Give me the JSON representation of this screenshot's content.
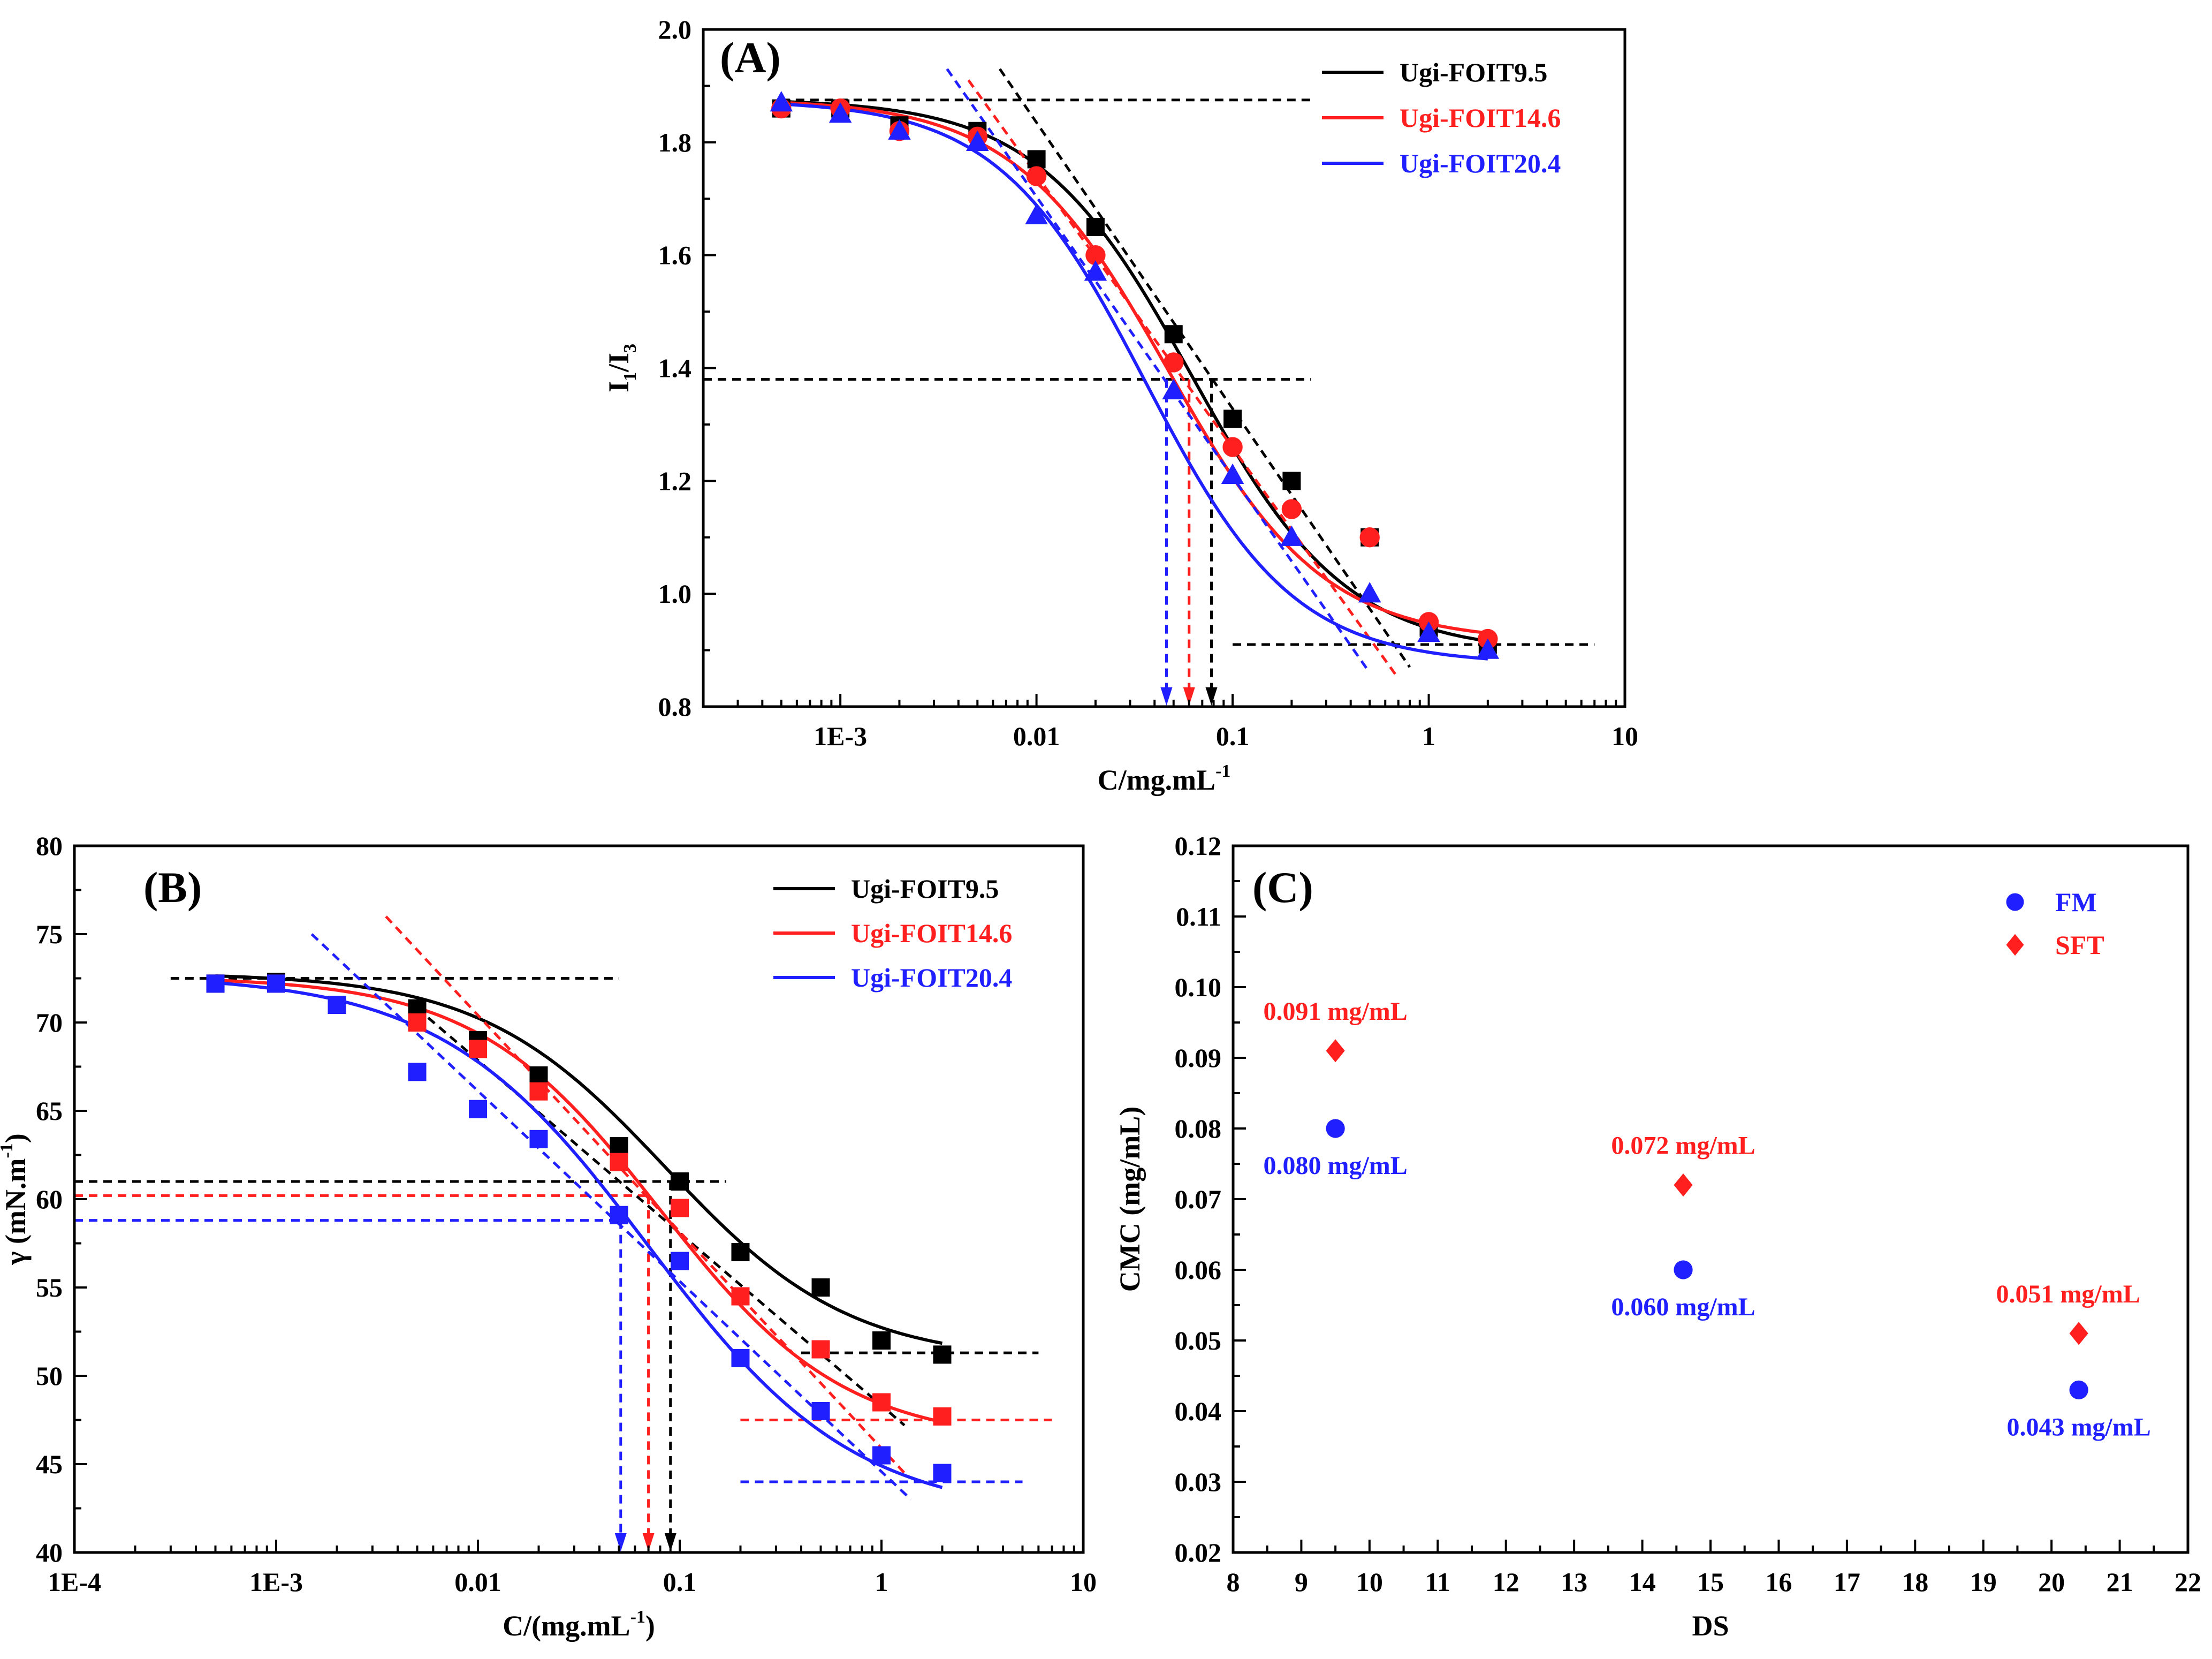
{
  "colors": {
    "black": "#000000",
    "red": "#ff1f1f",
    "blue": "#1f1fff"
  },
  "chart_data": [
    {
      "id": "A",
      "type": "scatter",
      "panel_label": "(A)",
      "xscale": "log",
      "xlim": [
        0.0002,
        10
      ],
      "ylim": [
        0.8,
        2.0
      ],
      "xlabel_main": "C/mg.mL",
      "xlabel_sup": "-1",
      "ylabel_main": "I",
      "ylabel_sub1": "1",
      "ylabel_mid": "/I",
      "ylabel_sub2": "3",
      "xticks": [
        0.001,
        0.01,
        0.1,
        1,
        10
      ],
      "xtick_labels": [
        "1E-3",
        "0.01",
        "0.1",
        "1",
        "10"
      ],
      "yticks": [
        0.8,
        1.0,
        1.2,
        1.4,
        1.6,
        1.8,
        2.0
      ],
      "ytick_labels": [
        "0.8",
        "1.0",
        "1.2",
        "1.4",
        "1.6",
        "1.8",
        "2.0"
      ],
      "legend_position": "top-right",
      "series": [
        {
          "name": "Ugi-FOIT9.5",
          "color": "#000000",
          "marker": "square",
          "x": [
            0.0005,
            0.001,
            0.002,
            0.005,
            0.01,
            0.02,
            0.05,
            0.1,
            0.2,
            0.5,
            1,
            2
          ],
          "y": [
            1.86,
            1.86,
            1.83,
            1.82,
            1.77,
            1.65,
            1.46,
            1.31,
            1.2,
            1.1,
            0.94,
            0.91
          ],
          "fit": {
            "top": 1.877,
            "bottom": 0.895,
            "x0": 0.062,
            "p": 1.1
          },
          "tangent": [
            [
              0.0065,
              1.93
            ],
            [
              0.8,
              0.87
            ]
          ],
          "cmc_arrow_x": 0.078
        },
        {
          "name": "Ugi-FOIT14.6",
          "color": "#ff1f1f",
          "marker": "circle",
          "x": [
            0.0005,
            0.001,
            0.002,
            0.005,
            0.01,
            0.02,
            0.05,
            0.1,
            0.2,
            0.5,
            1,
            2
          ],
          "y": [
            1.86,
            1.86,
            1.82,
            1.81,
            1.74,
            1.6,
            1.41,
            1.26,
            1.15,
            1.1,
            0.95,
            0.92
          ],
          "fit": {
            "top": 1.877,
            "bottom": 0.915,
            "x0": 0.047,
            "p": 1.1
          },
          "tangent": [
            [
              0.0045,
              1.91
            ],
            [
              0.7,
              0.85
            ]
          ],
          "cmc_arrow_x": 0.06
        },
        {
          "name": "Ugi-FOIT20.4",
          "color": "#1f1fff",
          "marker": "triangle",
          "x": [
            0.0005,
            0.001,
            0.002,
            0.005,
            0.01,
            0.02,
            0.05,
            0.1,
            0.2,
            0.5,
            1,
            2
          ],
          "y": [
            1.87,
            1.85,
            1.82,
            1.8,
            1.67,
            1.57,
            1.36,
            1.21,
            1.1,
            1.0,
            0.93,
            0.9
          ],
          "fit": {
            "top": 1.875,
            "bottom": 0.875,
            "x0": 0.036,
            "p": 1.15
          },
          "tangent": [
            [
              0.0035,
              1.93
            ],
            [
              0.5,
              0.86
            ]
          ],
          "cmc_arrow_x": 0.046
        }
      ],
      "ref_lines": [
        {
          "x": [
            0.0005,
            0.25
          ],
          "y": 1.875,
          "color": "#000000"
        },
        {
          "x": [
            0.0002,
            0.25
          ],
          "y": 1.38,
          "color": "#000000"
        },
        {
          "x": [
            0.1,
            7
          ],
          "y": 0.91,
          "color": "#000000"
        }
      ]
    },
    {
      "id": "B",
      "type": "scatter",
      "panel_label": "(B)",
      "xscale": "log",
      "xlim": [
        0.0001,
        10
      ],
      "ylim": [
        40,
        80
      ],
      "xlabel_main": "C/(mg.mL",
      "xlabel_sup": "-1",
      "xlabel_end": ")",
      "ylabel_main": "γ (mN.m",
      "ylabel_sup": "-1",
      "ylabel_end": ")",
      "xticks": [
        0.0001,
        0.001,
        0.01,
        0.1,
        1,
        10
      ],
      "xtick_labels": [
        "1E-4",
        "1E-3",
        "0.01",
        "0.1",
        "1",
        "10"
      ],
      "yticks": [
        40,
        45,
        50,
        55,
        60,
        65,
        70,
        75,
        80
      ],
      "ytick_labels": [
        "40",
        "45",
        "50",
        "55",
        "60",
        "65",
        "70",
        "75",
        "80"
      ],
      "legend_position": "top-right",
      "series": [
        {
          "name": "Ugi-FOIT9.5",
          "color": "#000000",
          "marker": "square",
          "x": [
            0.0005,
            0.001,
            0.002,
            0.005,
            0.01,
            0.02,
            0.05,
            0.1,
            0.2,
            0.5,
            1,
            2
          ],
          "y": [
            72.2,
            72.3,
            71.0,
            70.8,
            69.0,
            67.0,
            63.0,
            61.0,
            57.0,
            55.0,
            52.0,
            51.2
          ],
          "fit": {
            "top": 72.8,
            "bottom": 50.8,
            "x0": 0.085,
            "p": 0.95
          },
          "tangent": [
            [
              0.005,
              70.8
            ],
            [
              1.3,
              47.2
            ]
          ],
          "cmc_arrow_x": 0.09
        },
        {
          "name": "Ugi-FOIT14.6",
          "color": "#ff1f1f",
          "marker": "square",
          "x": [
            0.0005,
            0.001,
            0.002,
            0.005,
            0.01,
            0.02,
            0.05,
            0.1,
            0.2,
            0.5,
            1,
            2
          ],
          "y": [
            72.2,
            72.2,
            71.0,
            70.0,
            68.5,
            66.1,
            62.1,
            59.5,
            54.5,
            51.5,
            48.5,
            47.7
          ],
          "fit": {
            "top": 72.6,
            "bottom": 46.2,
            "x0": 0.08,
            "p": 0.95
          },
          "tangent": [
            [
              0.0035,
              76.0
            ],
            [
              1.3,
              44.5
            ]
          ],
          "cmc_arrow_x": 0.07
        },
        {
          "name": "Ugi-FOIT20.4",
          "color": "#1f1fff",
          "marker": "square",
          "x": [
            0.0005,
            0.001,
            0.002,
            0.005,
            0.01,
            0.02,
            0.05,
            0.1,
            0.2,
            0.5,
            1,
            2
          ],
          "y": [
            72.2,
            72.2,
            71.0,
            67.2,
            65.1,
            63.4,
            59.1,
            56.5,
            51.0,
            48.0,
            45.5,
            44.5
          ],
          "fit": {
            "top": 72.7,
            "bottom": 42.0,
            "x0": 0.07,
            "p": 0.85
          },
          "tangent": [
            [
              0.0015,
              75.0
            ],
            [
              1.4,
              43.0
            ]
          ],
          "cmc_arrow_x": 0.051
        }
      ],
      "ref_lines": [
        {
          "x": [
            0.0003,
            0.05
          ],
          "y": 72.5,
          "color": "#000000"
        },
        {
          "x": [
            0.0001,
            0.17
          ],
          "y": 61.0,
          "color": "#000000"
        },
        {
          "x": [
            0.0001,
            0.07
          ],
          "y": 60.2,
          "color": "#ff1f1f"
        },
        {
          "x": [
            0.0001,
            0.05
          ],
          "y": 58.8,
          "color": "#1f1fff"
        },
        {
          "x": [
            0.4,
            6
          ],
          "y": 51.3,
          "color": "#000000"
        },
        {
          "x": [
            0.2,
            7
          ],
          "y": 47.5,
          "color": "#ff1f1f"
        },
        {
          "x": [
            0.2,
            5
          ],
          "y": 44.0,
          "color": "#1f1fff"
        }
      ]
    },
    {
      "id": "C",
      "type": "scatter",
      "panel_label": "(C)",
      "xlim": [
        8,
        22
      ],
      "ylim": [
        0.02,
        0.12
      ],
      "xlabel": "DS",
      "ylabel": "CMC (mg/mL)",
      "xticks": [
        8,
        9,
        10,
        11,
        12,
        13,
        14,
        15,
        16,
        17,
        18,
        19,
        20,
        21,
        22
      ],
      "xtick_labels": [
        "8",
        "9",
        "10",
        "11",
        "12",
        "13",
        "14",
        "15",
        "16",
        "17",
        "18",
        "19",
        "20",
        "21",
        "22"
      ],
      "yticks": [
        0.02,
        0.03,
        0.04,
        0.05,
        0.06,
        0.07,
        0.08,
        0.09,
        0.1,
        0.11,
        0.12
      ],
      "ytick_labels": [
        "0.02",
        "0.03",
        "0.04",
        "0.05",
        "0.06",
        "0.07",
        "0.08",
        "0.09",
        "0.10",
        "0.11",
        "0.12"
      ],
      "legend_position": "top-right",
      "series": [
        {
          "name": "FM",
          "color": "#1f1fff",
          "marker": "circle",
          "x": [
            9.5,
            14.6,
            20.4
          ],
          "y": [
            0.08,
            0.06,
            0.043
          ],
          "labels": [
            "0.080 mg/mL",
            "0.060 mg/mL",
            "0.043 mg/mL"
          ]
        },
        {
          "name": "SFT",
          "color": "#ff1f1f",
          "marker": "diamond",
          "x": [
            9.5,
            14.6,
            20.4
          ],
          "y": [
            0.091,
            0.072,
            0.051
          ],
          "labels": [
            "0.091 mg/mL",
            "0.072 mg/mL",
            "0.051 mg/mL"
          ]
        }
      ]
    }
  ]
}
